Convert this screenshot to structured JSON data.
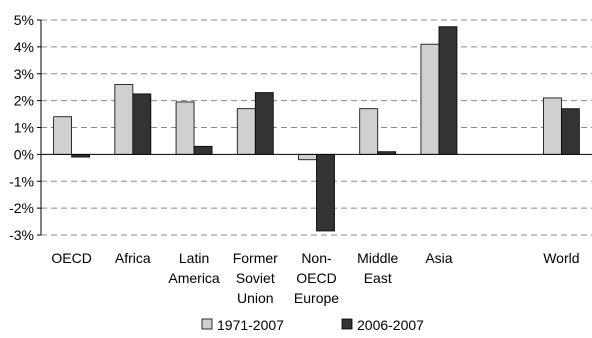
{
  "chart_data": {
    "type": "bar",
    "categories": [
      [
        "OECD"
      ],
      [
        "Africa"
      ],
      [
        "Latin",
        "America"
      ],
      [
        "Former",
        "Soviet",
        "Union"
      ],
      [
        "Non-",
        "OECD",
        "Europe"
      ],
      [
        "Middle",
        "East"
      ],
      [
        "Asia"
      ],
      [],
      [
        "World"
      ]
    ],
    "series": [
      {
        "name": "1971-2007",
        "color": "#d0d0d0",
        "values": [
          1.4,
          2.6,
          1.95,
          1.7,
          -0.2,
          1.7,
          4.1,
          null,
          2.1
        ]
      },
      {
        "name": "2006-2007",
        "color": "#333333",
        "values": [
          -0.1,
          2.25,
          0.3,
          2.3,
          -2.85,
          0.1,
          4.75,
          null,
          1.7
        ]
      }
    ],
    "y_ticks": [
      "5%",
      "4%",
      "3%",
      "2%",
      "1%",
      "0%",
      "-1%",
      "-2%",
      "-3%"
    ],
    "ylim": [
      -3,
      5
    ],
    "grid": true,
    "legend_position": "bottom"
  }
}
